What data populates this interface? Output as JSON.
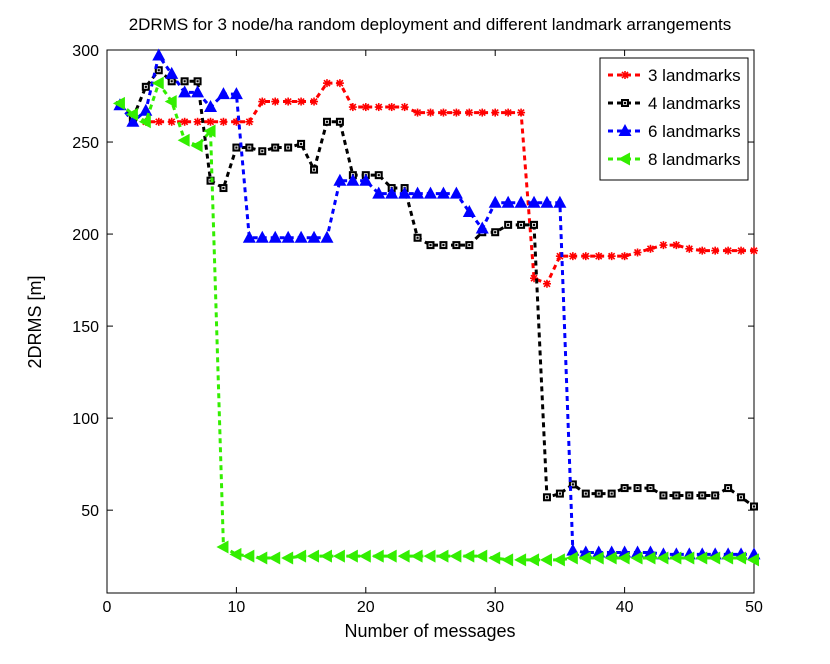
{
  "chart_data": {
    "type": "line",
    "title": "2DRMS for 3 node/ha random deployment and different landmark arrangements",
    "xlabel": "Number of messages",
    "ylabel": "2DRMS [m]",
    "xlim": [
      0,
      50
    ],
    "ylim": [
      5,
      300
    ],
    "xticks": [
      0,
      10,
      20,
      30,
      40,
      50
    ],
    "yticks": [
      50,
      100,
      150,
      200,
      250,
      300
    ],
    "legend_position": "top-right",
    "x": [
      1,
      2,
      3,
      4,
      5,
      6,
      7,
      8,
      9,
      10,
      11,
      12,
      13,
      14,
      15,
      16,
      17,
      18,
      19,
      20,
      21,
      22,
      23,
      24,
      25,
      26,
      27,
      28,
      29,
      30,
      31,
      32,
      33,
      34,
      35,
      36,
      37,
      38,
      39,
      40,
      41,
      42,
      43,
      44,
      45,
      46,
      47,
      48,
      49,
      50
    ],
    "series": [
      {
        "name": "3 landmarks",
        "color": "#ff0000",
        "marker": "star",
        "values": [
          270,
          263,
          261,
          261,
          261,
          261,
          261,
          261,
          261,
          261,
          261,
          272,
          272,
          272,
          272,
          272,
          282,
          282,
          269,
          269,
          269,
          269,
          269,
          266,
          266,
          266,
          266,
          266,
          266,
          266,
          266,
          266,
          176,
          173,
          188,
          188,
          188,
          188,
          188,
          188,
          190,
          192,
          194,
          194,
          192,
          191,
          191,
          191,
          191,
          191
        ]
      },
      {
        "name": "4 landmarks",
        "color": "#000000",
        "marker": "square",
        "values": [
          270,
          263,
          280,
          289,
          283,
          283,
          283,
          229,
          225,
          247,
          247,
          245,
          247,
          247,
          249,
          235,
          261,
          261,
          232,
          232,
          232,
          225,
          225,
          198,
          194,
          194,
          194,
          194,
          201,
          201,
          205,
          205,
          205,
          57,
          59,
          64,
          59,
          59,
          59,
          62,
          62,
          62,
          58,
          58,
          58,
          58,
          58,
          62,
          57,
          52
        ]
      },
      {
        "name": "6 landmarks",
        "color": "#0000ff",
        "marker": "triangle-up",
        "values": [
          270,
          261,
          267,
          297,
          287,
          277,
          277,
          269,
          276,
          276,
          198,
          198,
          198,
          198,
          198,
          198,
          198,
          229,
          229,
          229,
          222,
          222,
          222,
          222,
          222,
          222,
          222,
          212,
          203,
          217,
          217,
          217,
          217,
          217,
          217,
          28,
          27,
          27,
          27,
          27,
          27,
          27,
          26,
          26,
          26,
          26,
          26,
          26,
          26,
          26
        ]
      },
      {
        "name": "8 landmarks",
        "color": "#33ee00",
        "marker": "triangle-left",
        "values": [
          271,
          265,
          261,
          282,
          272,
          251,
          248,
          256,
          30,
          26,
          25,
          24,
          24,
          24,
          25,
          25,
          25,
          25,
          25,
          25,
          25,
          25,
          25,
          25,
          25,
          25,
          25,
          25,
          25,
          24,
          23,
          23,
          23,
          23,
          23,
          24,
          24,
          24,
          24,
          24,
          24,
          24,
          24,
          24,
          24,
          24,
          24,
          24,
          24,
          23
        ]
      }
    ]
  }
}
